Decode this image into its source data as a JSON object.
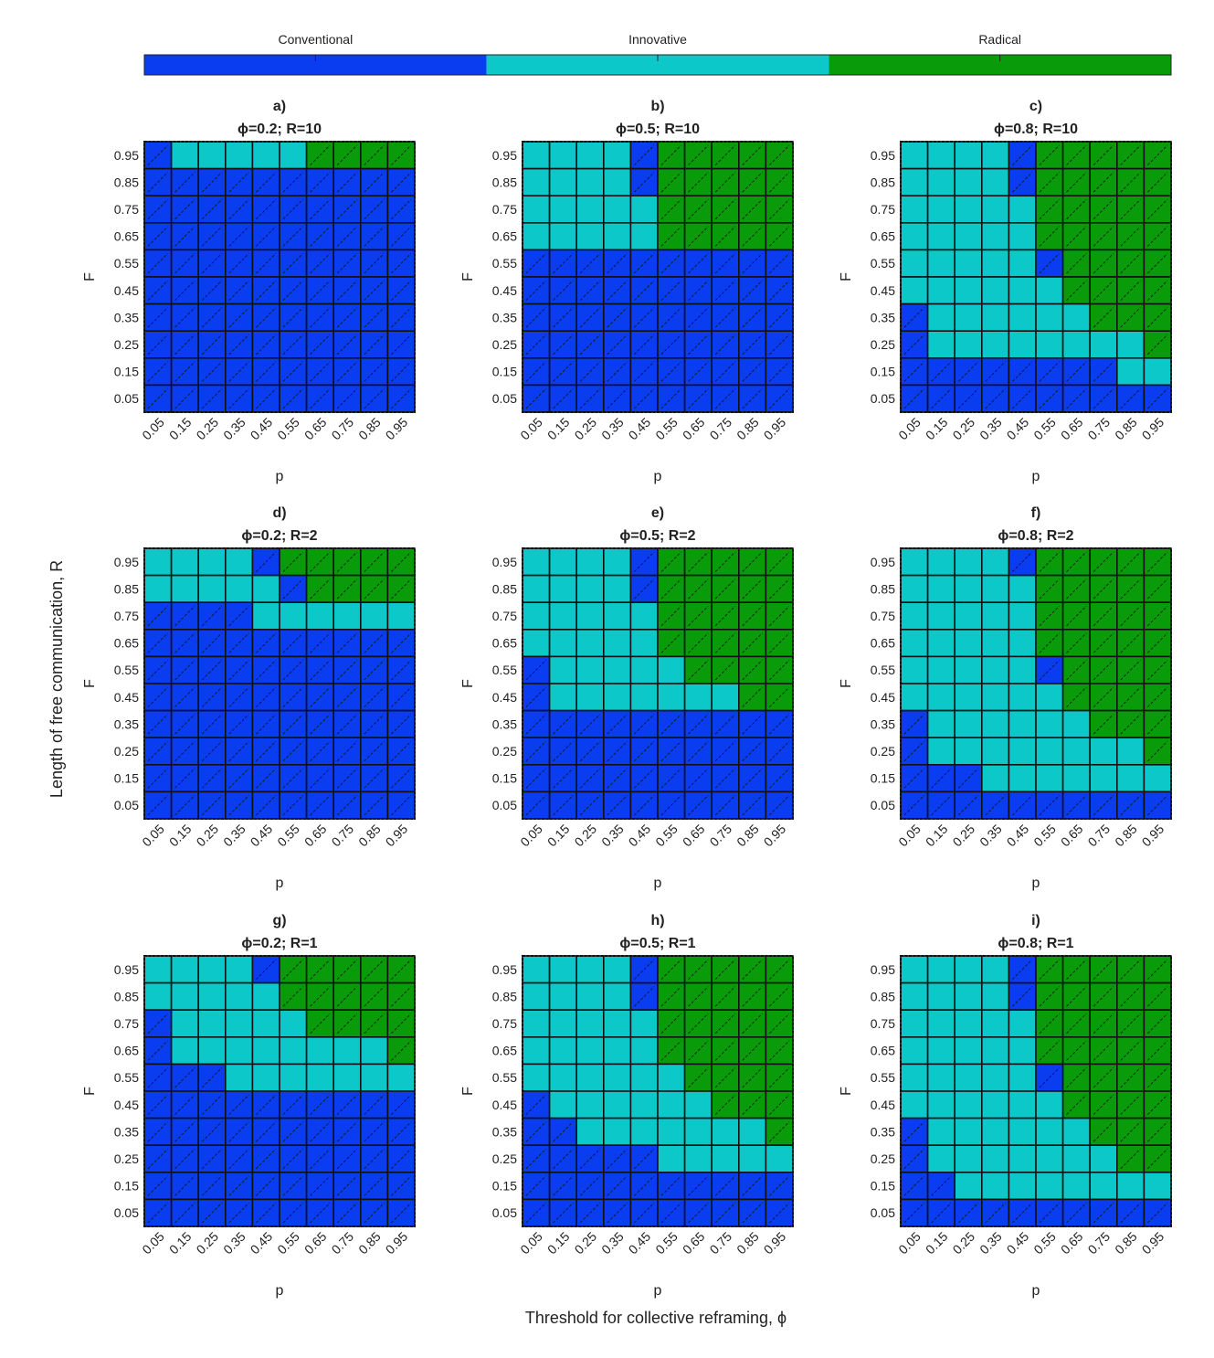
{
  "chart_data": {
    "type": "heatmap",
    "colorbar": {
      "categories": [
        "Conventional",
        "Innovative",
        "Radical"
      ],
      "colors": [
        "#0a3cf0",
        "#0cc8c8",
        "#0a9b0a"
      ]
    },
    "x_label": "p",
    "y_label": "F",
    "row_label": "Length of free communication, R",
    "col_label": "Threshold for collective reframing, ϕ",
    "x_ticks": [
      "0.05",
      "0.15",
      "0.25",
      "0.35",
      "0.45",
      "0.55",
      "0.65",
      "0.75",
      "0.85",
      "0.95"
    ],
    "y_ticks": [
      "0.95",
      "0.85",
      "0.75",
      "0.65",
      "0.55",
      "0.45",
      "0.35",
      "0.25",
      "0.15",
      "0.05"
    ],
    "category_codes": {
      "C": "Conventional",
      "I": "Innovative",
      "R": "Radical"
    },
    "panels": [
      {
        "letter": "a)",
        "title": "ϕ=0.2; R=10",
        "grid": [
          "CIIIIIRRRR",
          "CCCCCCCCCC",
          "CCCCCCCCCC",
          "CCCCCCCCCC",
          "CCCCCCCCCC",
          "CCCCCCCCCC",
          "CCCCCCCCCC",
          "CCCCCCCCCC",
          "CCCCCCCCCC",
          "CCCCCCCCCC"
        ]
      },
      {
        "letter": "b)",
        "title": "ϕ=0.5; R=10",
        "grid": [
          "IIIICRRRRR",
          "IIIICRRRRR",
          "IIIIIRRRRR",
          "IIIIIRRRRR",
          "CCCCCCCCCC",
          "CCCCCCCCCC",
          "CCCCCCCCCC",
          "CCCCCCCCCC",
          "CCCCCCCCCC",
          "CCCCCCCCCC"
        ]
      },
      {
        "letter": "c)",
        "title": "ϕ=0.8; R=10",
        "grid": [
          "IIIICRRRRR",
          "IIIICRRRRR",
          "IIIIIRRRRR",
          "IIIIIRRRRR",
          "IIIIICRRRR",
          "IIIIIIRRRR",
          "CIIIIIIRRR",
          "CIIIIIIIIR",
          "CCCCCCCCII",
          "CCCCCCCCCC"
        ]
      },
      {
        "letter": "d)",
        "title": "ϕ=0.2; R=2",
        "grid": [
          "IIIICRRRRR",
          "IIIIICRRRR",
          "CCCCIIIIII",
          "CCCCCCCCCC",
          "CCCCCCCCCC",
          "CCCCCCCCCC",
          "CCCCCCCCCC",
          "CCCCCCCCCC",
          "CCCCCCCCCC",
          "CCCCCCCCCC"
        ]
      },
      {
        "letter": "e)",
        "title": "ϕ=0.5; R=2",
        "grid": [
          "IIIICRRRRR",
          "IIIICRRRRR",
          "IIIIIRRRRR",
          "IIIIIRRRRR",
          "CIIIIIRRRR",
          "CIIIIIIIRR",
          "CCCCCCCCCC",
          "CCCCCCCCCC",
          "CCCCCCCCCC",
          "CCCCCCCCCC"
        ]
      },
      {
        "letter": "f)",
        "title": "ϕ=0.8; R=2",
        "grid": [
          "IIIICRRRRR",
          "IIIIIRRRRR",
          "IIIIIRRRRR",
          "IIIIIRRRRR",
          "IIIIICRRRR",
          "IIIIIIRRRR",
          "CIIIIIIRRR",
          "CIIIIIIIIR",
          "CCCIIIIIII",
          "CCCCCCCCCC"
        ]
      },
      {
        "letter": "g)",
        "title": "ϕ=0.2; R=1",
        "grid": [
          "IIIICRRRRR",
          "IIIIIRRRRR",
          "CIIIIIRRRR",
          "CIIIIIIIIR",
          "CCCIIIIIII",
          "CCCCCCCCCC",
          "CCCCCCCCCC",
          "CCCCCCCCCC",
          "CCCCCCCCCC",
          "CCCCCCCCCC"
        ]
      },
      {
        "letter": "h)",
        "title": "ϕ=0.5; R=1",
        "grid": [
          "IIIICRRRRR",
          "IIIICRRRRR",
          "IIIIIRRRRR",
          "IIIIIRRRRR",
          "IIIIIIRRRR",
          "CIIIIIIRRR",
          "CCIIIIIIIR",
          "CCCCCIIIII",
          "CCCCCCCCCC",
          "CCCCCCCCCC"
        ]
      },
      {
        "letter": "i)",
        "title": "ϕ=0.8; R=1",
        "grid": [
          "IIIICRRRRR",
          "IIIICRRRRR",
          "IIIIIRRRRR",
          "IIIIIRRRRR",
          "IIIIICRRRR",
          "IIIIIIRRRR",
          "CIIIIIIRRR",
          "CIIIIIIIRR",
          "CCIIIIIIII",
          "CCCCCCCCCC"
        ]
      }
    ]
  }
}
